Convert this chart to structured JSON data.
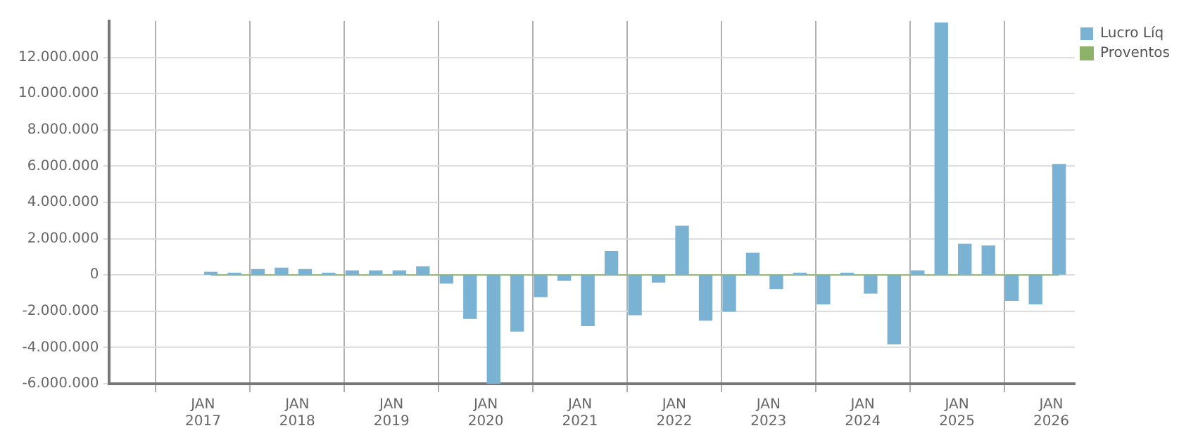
{
  "chart_data": {
    "type": "bar",
    "x": [
      "2017-02",
      "2017-05",
      "2017-08",
      "2017-11",
      "2018-02",
      "2018-05",
      "2018-08",
      "2018-11",
      "2019-02",
      "2019-05",
      "2019-08",
      "2019-11",
      "2020-02",
      "2020-05",
      "2020-08",
      "2020-11",
      "2021-02",
      "2021-05",
      "2021-08",
      "2021-11",
      "2022-02",
      "2022-05",
      "2022-08",
      "2022-11",
      "2023-02",
      "2023-05",
      "2023-08",
      "2023-11",
      "2024-02",
      "2024-05",
      "2024-08",
      "2024-11",
      "2025-02",
      "2025-05",
      "2025-08",
      "2025-11",
      "2026-02"
    ],
    "series": [
      {
        "name": "Lucro Líq",
        "color": "#7ab2d4",
        "values": [
          150000,
          100000,
          300000,
          380000,
          300000,
          100000,
          230000,
          230000,
          230000,
          450000,
          -450000,
          -2400000,
          -6000000,
          -3100000,
          -1200000,
          -300000,
          -2800000,
          1300000,
          -2200000,
          -400000,
          2700000,
          -2500000,
          -2000000,
          1200000,
          -750000,
          100000,
          -1600000,
          100000,
          -1000000,
          -3800000,
          230000,
          13900000,
          1700000,
          1600000,
          -1400000,
          -1600000,
          6100000
        ]
      },
      {
        "name": "Proventos",
        "color": "#8cb369",
        "type": "line",
        "values": [
          0,
          0,
          0,
          0,
          0,
          0,
          0,
          0,
          0,
          0,
          0,
          0,
          0,
          0,
          0,
          0,
          0,
          0,
          0,
          0,
          0,
          0,
          0,
          0,
          0,
          0,
          0,
          0,
          0,
          0,
          0,
          0,
          0,
          0,
          0,
          0,
          0
        ]
      }
    ],
    "xlim": [
      "2016-01",
      "2026-04"
    ],
    "xticks": [
      {
        "value": "2017-01",
        "label": "JAN 2017"
      },
      {
        "value": "2018-01",
        "label": "JAN 2018"
      },
      {
        "value": "2019-01",
        "label": "JAN 2019"
      },
      {
        "value": "2020-01",
        "label": "JAN 2020"
      },
      {
        "value": "2021-01",
        "label": "JAN 2021"
      },
      {
        "value": "2022-01",
        "label": "JAN 2022"
      },
      {
        "value": "2023-01",
        "label": "JAN 2023"
      },
      {
        "value": "2024-01",
        "label": "JAN 2024"
      },
      {
        "value": "2025-01",
        "label": "JAN 2025"
      },
      {
        "value": "2026-01",
        "label": "JAN 2026"
      }
    ],
    "ylim": [
      -6000000,
      14000000
    ],
    "yticks": [
      {
        "value": -6000000,
        "label": "-6.000.000"
      },
      {
        "value": -4000000,
        "label": "-4.000.000"
      },
      {
        "value": -2000000,
        "label": "-2.000.000"
      },
      {
        "value": 0,
        "label": "0"
      },
      {
        "value": 2000000,
        "label": "2.000.000"
      },
      {
        "value": 4000000,
        "label": "4.000.000"
      },
      {
        "value": 6000000,
        "label": "6.000.000"
      },
      {
        "value": 8000000,
        "label": "8.000.000"
      },
      {
        "value": 10000000,
        "label": "10.000.000"
      },
      {
        "value": 12000000,
        "label": "12.000.000"
      }
    ],
    "grid": true,
    "legend": "top right",
    "marker": "none"
  }
}
